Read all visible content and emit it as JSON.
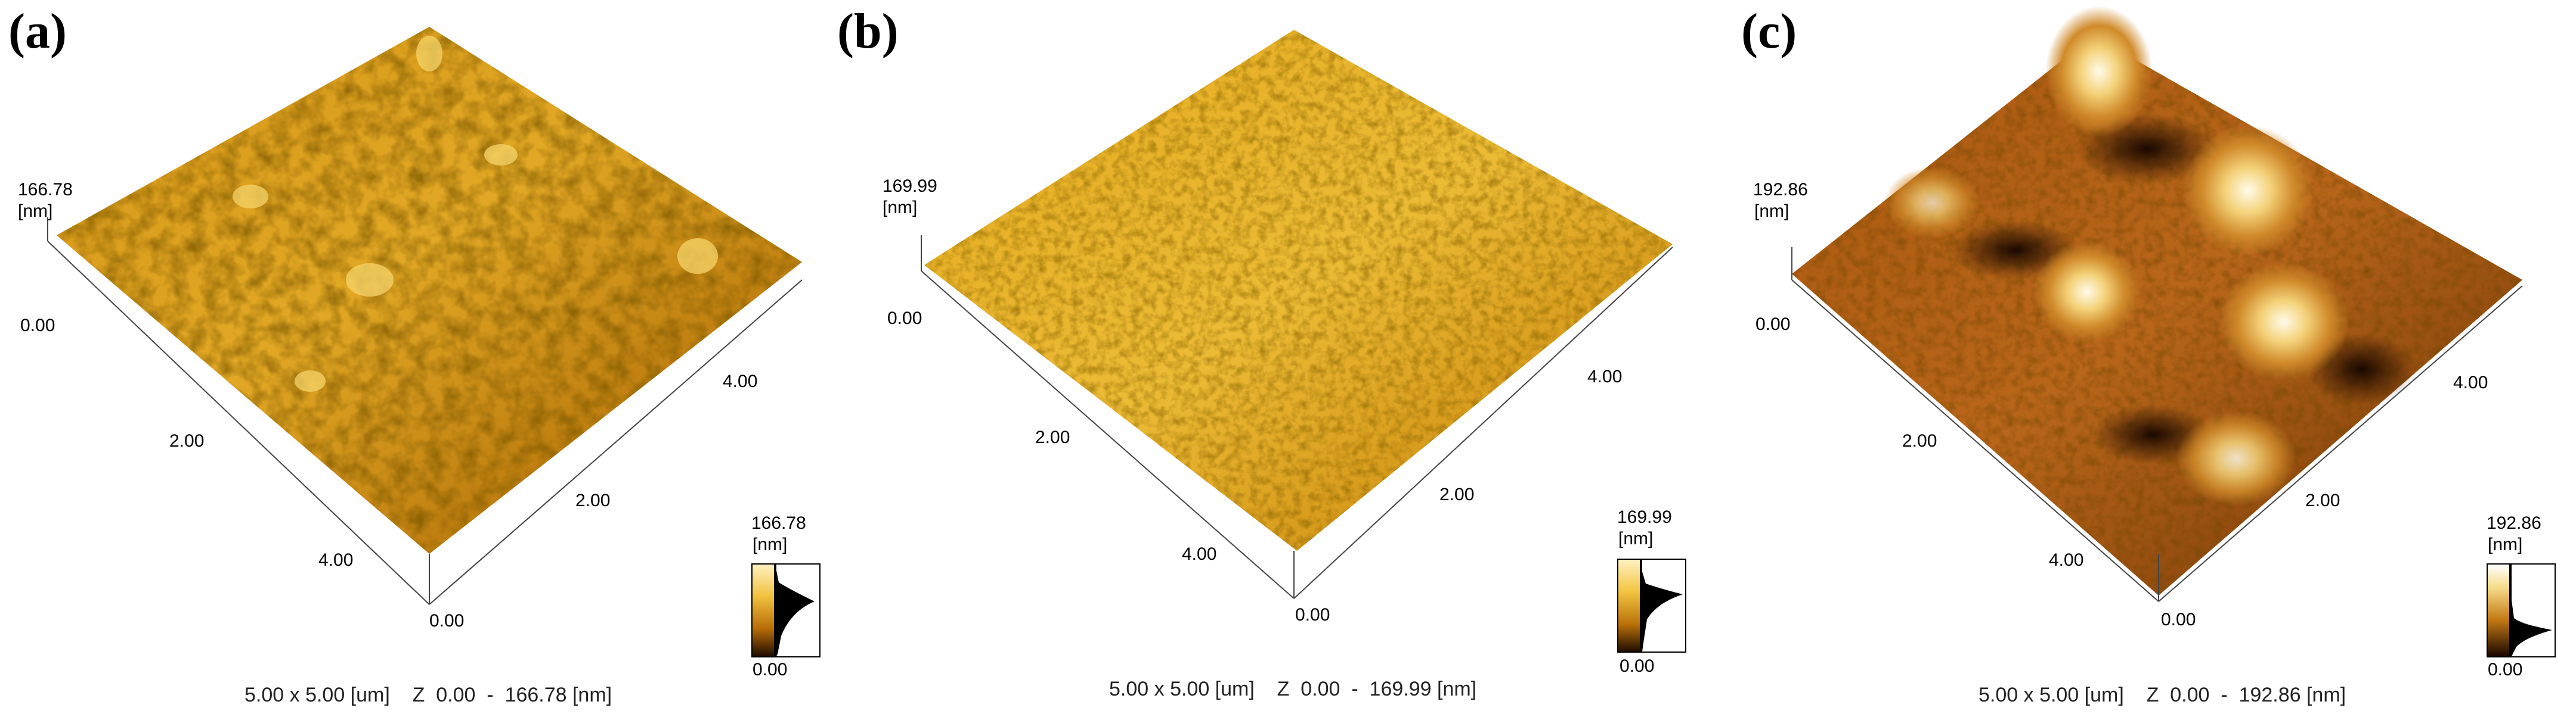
{
  "panels": [
    {
      "label": "(a)",
      "zmax": "166.78",
      "unit": "[nm]",
      "zero": "0.00",
      "tick2": "2.00",
      "tick4": "4.00",
      "caption": "5.00 x 5.00 [um]    Z  0.00  -  166.78 [nm]",
      "scale_max": "166.78",
      "scale_unit": "[nm]",
      "scale_min": "0.00",
      "colors": {
        "dark": "#2a1400",
        "mid": "#c98a10",
        "light": "#f2c94a",
        "peak": "#fff6d6"
      }
    },
    {
      "label": "(b)",
      "zmax": "169.99",
      "unit": "[nm]",
      "zero": "0.00",
      "tick2": "2.00",
      "tick4": "4.00",
      "caption": "5.00 x 5.00 [um]    Z  0.00  -  169.99 [nm]",
      "scale_max": "169.99",
      "scale_unit": "[nm]",
      "scale_min": "0.00",
      "colors": {
        "dark": "#3a1c00",
        "mid": "#d09a18",
        "light": "#f4d15a",
        "peak": "#fff3c8"
      }
    },
    {
      "label": "(c)",
      "zmax": "192.86",
      "unit": "[nm]",
      "zero": "0.00",
      "tick2": "2.00",
      "tick4": "4.00",
      "caption": "5.00 x 5.00 [um]    Z  0.00  -  192.86 [nm]",
      "scale_max": "192.86",
      "scale_unit": "[nm]",
      "scale_min": "0.00",
      "colors": {
        "dark": "#1e0b00",
        "mid": "#a5520f",
        "light": "#e7a33a",
        "peak": "#fffbea"
      }
    }
  ]
}
